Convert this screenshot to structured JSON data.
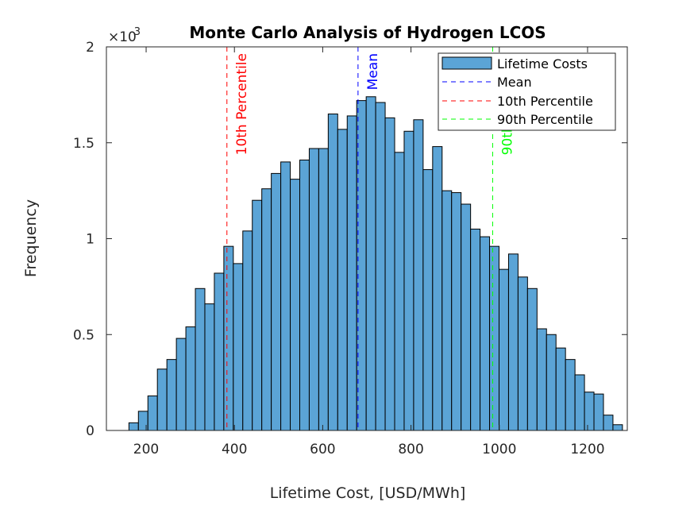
{
  "chart_data": {
    "type": "bar",
    "title": "Monte Carlo Analysis of Hydrogen LCOS",
    "xlabel": "Lifetime Cost, [USD/MWh]",
    "ylabel": "Frequency",
    "y_exponent": "×10",
    "y_exponent_power": "-3",
    "xlim": [
      110,
      1290
    ],
    "ylim": [
      0,
      2.0
    ],
    "y_scale_note": "values × 10^-3",
    "xticks": [
      200,
      400,
      600,
      800,
      1000,
      1200
    ],
    "xtick_labels": [
      "200",
      "400",
      "600",
      "800",
      "1000",
      "1200"
    ],
    "yticks": [
      0,
      0.5,
      1,
      1.5,
      2
    ],
    "ytick_labels": [
      "0",
      "0.5",
      "1",
      "1.5",
      "2"
    ],
    "grid": false,
    "bar_color": "#5ba4d6",
    "bin_start": 161,
    "bin_width": 21.5,
    "series": [
      {
        "name": "Lifetime Costs",
        "values": [
          0.04,
          0.1,
          0.18,
          0.32,
          0.37,
          0.48,
          0.54,
          0.74,
          0.66,
          0.82,
          0.96,
          0.87,
          1.04,
          1.2,
          1.26,
          1.34,
          1.4,
          1.31,
          1.41,
          1.47,
          1.47,
          1.65,
          1.57,
          1.64,
          1.72,
          1.74,
          1.71,
          1.63,
          1.45,
          1.56,
          1.62,
          1.36,
          1.48,
          1.25,
          1.24,
          1.18,
          1.05,
          1.01,
          0.96,
          0.84,
          0.92,
          0.8,
          0.74,
          0.53,
          0.5,
          0.43,
          0.37,
          0.29,
          0.2,
          0.19,
          0.08,
          0.03
        ]
      }
    ],
    "reference_lines": [
      {
        "name": "Mean",
        "x": 680,
        "color": "#0000ff",
        "label": "Mean"
      },
      {
        "name": "10th Percentile",
        "x": 383,
        "color": "#ff0000",
        "label": "10th Percentile"
      },
      {
        "name": "90th Percentile",
        "x": 985,
        "color": "#00ff00",
        "label": "90th Percentile"
      }
    ],
    "legend": {
      "placement": "top-right",
      "entries": [
        "Lifetime Costs",
        "Mean",
        "10th Percentile",
        "90th Percentile"
      ]
    }
  }
}
